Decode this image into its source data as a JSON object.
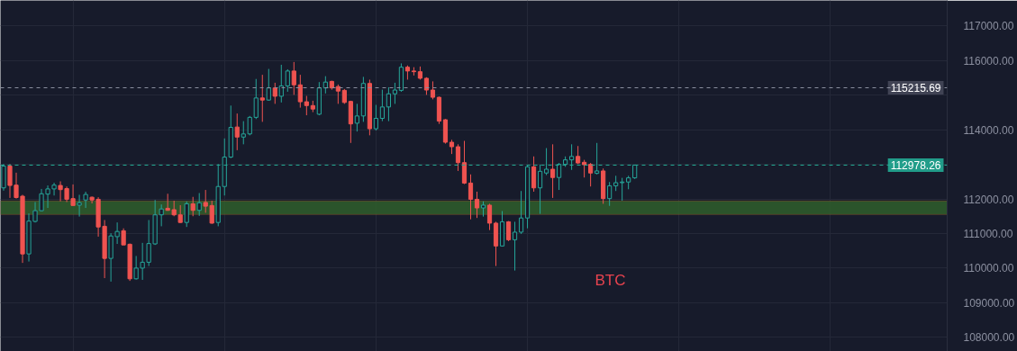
{
  "chart_data": {
    "type": "candlestick",
    "categories": [
      null,
      null,
      null,
      null,
      null,
      null,
      null,
      null,
      null,
      null,
      null,
      null,
      null,
      null,
      null,
      null,
      null,
      null,
      null,
      null,
      null,
      null,
      null,
      null,
      null,
      null,
      null,
      null,
      null,
      null,
      null,
      null,
      null,
      null,
      null,
      null,
      null,
      null,
      null,
      null,
      null,
      null,
      null,
      null,
      null,
      null,
      null,
      null,
      null,
      null,
      null,
      null,
      null,
      null,
      null,
      null,
      null,
      null,
      null,
      null,
      null,
      null,
      null,
      null,
      null,
      null,
      null,
      null,
      null,
      null,
      null,
      null,
      null,
      null,
      null,
      null,
      null,
      null,
      null,
      null,
      null,
      null,
      null,
      null,
      null,
      null,
      null,
      null,
      null,
      null,
      null,
      null,
      null,
      null,
      null,
      null,
      null,
      null,
      null,
      null,
      null,
      null,
      null,
      null,
      null,
      null,
      null,
      null,
      null,
      null,
      null,
      null,
      null,
      null,
      null,
      null,
      null,
      null,
      null,
      null,
      null,
      null,
      null,
      null,
      null,
      null,
      null,
      null,
      null,
      null,
      null,
      null,
      null,
      null,
      null,
      null,
      null,
      null,
      null,
      null,
      null,
      null,
      null,
      null,
      null,
      null,
      null,
      null,
      null,
      null
    ],
    "ohlc": [
      [
        112320,
        113010,
        112240,
        112950
      ],
      [
        112950,
        113010,
        112030,
        112390
      ],
      [
        112400,
        112760,
        112010,
        112040
      ],
      [
        112080,
        112120,
        110150,
        110410
      ],
      [
        110410,
        111580,
        110190,
        111360
      ],
      [
        111350,
        111910,
        111320,
        111660
      ],
      [
        111660,
        112290,
        111650,
        112150
      ],
      [
        112140,
        112390,
        111740,
        112290
      ],
      [
        112290,
        112470,
        112100,
        112400
      ],
      [
        112390,
        112510,
        111930,
        112270
      ],
      [
        112300,
        112360,
        111910,
        111990
      ],
      [
        112010,
        112420,
        111810,
        111810
      ],
      [
        111820,
        112120,
        111490,
        111890
      ],
      [
        111970,
        112210,
        111740,
        112130
      ],
      [
        112050,
        112070,
        111870,
        111970
      ],
      [
        111990,
        112050,
        110910,
        111190
      ],
      [
        111210,
        111390,
        109710,
        110280
      ],
      [
        110280,
        111010,
        109610,
        110930
      ],
      [
        110910,
        111320,
        110700,
        111060
      ],
      [
        111080,
        111150,
        110670,
        110670
      ],
      [
        110690,
        110710,
        109630,
        109690
      ],
      [
        109690,
        110350,
        109670,
        110000
      ],
      [
        110000,
        110730,
        109660,
        110170
      ],
      [
        110170,
        111390,
        110060,
        110710
      ],
      [
        110700,
        111970,
        110670,
        111540
      ],
      [
        111540,
        111840,
        111210,
        111710
      ],
      [
        111730,
        112150,
        111660,
        111670
      ],
      [
        111690,
        111950,
        111500,
        111540
      ],
      [
        111540,
        111820,
        111310,
        111320
      ],
      [
        111320,
        111930,
        111190,
        111860
      ],
      [
        111860,
        112060,
        111500,
        111670
      ],
      [
        111670,
        112170,
        111510,
        111890
      ],
      [
        111900,
        112260,
        111600,
        111790
      ],
      [
        111810,
        111950,
        111280,
        111300
      ],
      [
        111320,
        113010,
        111210,
        112360
      ],
      [
        112360,
        113750,
        112100,
        113210
      ],
      [
        113210,
        114700,
        113180,
        114070
      ],
      [
        114080,
        114470,
        113410,
        113790
      ],
      [
        113790,
        114250,
        113580,
        113880
      ],
      [
        113880,
        114400,
        113840,
        114360
      ],
      [
        114360,
        115470,
        114310,
        114920
      ],
      [
        114920,
        115590,
        114230,
        114860
      ],
      [
        114860,
        115760,
        114840,
        115210
      ],
      [
        115210,
        115360,
        114750,
        114970
      ],
      [
        114970,
        115880,
        114790,
        115270
      ],
      [
        115270,
        115750,
        115100,
        115700
      ],
      [
        115700,
        115960,
        115010,
        115300
      ],
      [
        115300,
        115590,
        114640,
        114810
      ],
      [
        114810,
        114980,
        114420,
        114700
      ],
      [
        114700,
        114840,
        114510,
        114600
      ],
      [
        114450,
        115380,
        114420,
        115210
      ],
      [
        115210,
        115550,
        115050,
        115380
      ],
      [
        115400,
        115420,
        115160,
        115210
      ],
      [
        115250,
        115310,
        114750,
        115120
      ],
      [
        115140,
        115180,
        114750,
        114790
      ],
      [
        114820,
        114840,
        113620,
        114170
      ],
      [
        114190,
        114750,
        113950,
        114400
      ],
      [
        114400,
        115530,
        114230,
        115340
      ],
      [
        115340,
        115450,
        113840,
        114030
      ],
      [
        114030,
        114720,
        113980,
        114330
      ],
      [
        114330,
        115160,
        114250,
        114660
      ],
      [
        114660,
        115230,
        114250,
        115040
      ],
      [
        115040,
        115360,
        114750,
        115150
      ],
      [
        115140,
        115920,
        115100,
        115810
      ],
      [
        115810,
        115860,
        115450,
        115700
      ],
      [
        115700,
        115810,
        115570,
        115680
      ],
      [
        115680,
        115830,
        115450,
        115490
      ],
      [
        115490,
        115520,
        115010,
        115150
      ],
      [
        115150,
        115400,
        114880,
        114940
      ],
      [
        114940,
        114960,
        114170,
        114250
      ],
      [
        114290,
        114310,
        113600,
        113640
      ],
      [
        113640,
        113710,
        113300,
        113510
      ],
      [
        113510,
        113580,
        112810,
        113050
      ],
      [
        113050,
        113680,
        112430,
        112460
      ],
      [
        112460,
        112710,
        111410,
        111990
      ],
      [
        111990,
        112210,
        111450,
        111740
      ],
      [
        111740,
        111930,
        111490,
        111820
      ],
      [
        111820,
        111860,
        111100,
        111300
      ],
      [
        111300,
        111340,
        110060,
        110640
      ],
      [
        110640,
        111650,
        110630,
        111340
      ],
      [
        111340,
        111360,
        110780,
        110820
      ],
      [
        110820,
        111340,
        109930,
        111040
      ],
      [
        111040,
        112230,
        110990,
        111450
      ],
      [
        111450,
        112990,
        111150,
        112930
      ],
      [
        112930,
        113230,
        112210,
        112320
      ],
      [
        112320,
        112990,
        111570,
        112800
      ],
      [
        112750,
        113470,
        112690,
        112860
      ],
      [
        112860,
        113580,
        112030,
        112620
      ],
      [
        112620,
        113040,
        112260,
        113000
      ],
      [
        113000,
        113230,
        112930,
        113130
      ],
      [
        113130,
        113580,
        112840,
        113230
      ],
      [
        113230,
        113530,
        113010,
        113040
      ],
      [
        113060,
        113130,
        112620,
        112990
      ],
      [
        113000,
        113040,
        112360,
        112750
      ],
      [
        112740,
        113620,
        112710,
        112810
      ],
      [
        112810,
        112880,
        111860,
        112010
      ],
      [
        112010,
        112490,
        111800,
        112380
      ],
      [
        112380,
        112670,
        112230,
        112470
      ],
      [
        112470,
        112610,
        111950,
        112490
      ],
      [
        112490,
        112670,
        112280,
        112610
      ],
      [
        112610,
        112990,
        112580,
        112978.26
      ],
      null,
      null,
      null,
      null,
      null,
      null,
      null,
      null,
      null,
      null,
      null,
      null,
      null,
      null,
      null,
      null,
      null,
      null,
      null,
      null,
      null,
      null,
      null,
      null,
      null,
      null,
      null,
      null,
      null,
      null,
      null,
      null,
      null,
      null,
      null,
      null,
      null,
      null,
      null,
      null,
      null,
      null,
      null,
      null,
      null,
      null,
      null,
      null,
      null
    ],
    "colors": [
      "#26a69a",
      "#ef5350",
      "#ef5350",
      "#ef5350",
      "#26a69a",
      "#26a69a",
      "#26a69a",
      "#26a69a",
      "#26a69a",
      "#ef5350",
      "#ef5350",
      "#ef5350",
      "#26a69a",
      "#26a69a",
      "#ef5350",
      "#ef5350",
      "#ef5350",
      "#26a69a",
      "#26a69a",
      "#ef5350",
      "#ef5350",
      "#26a69a",
      "#26a69a",
      "#26a69a",
      "#26a69a",
      "#26a69a",
      "#ef5350",
      "#ef5350",
      "#ef5350",
      "#26a69a",
      "#ef5350",
      "#26a69a",
      "#ef5350",
      "#ef5350",
      "#26a69a",
      "#26a69a",
      "#26a69a",
      "#ef5350",
      "#26a69a",
      "#26a69a",
      "#26a69a",
      "#ef5350",
      "#26a69a",
      "#ef5350",
      "#26a69a",
      "#26a69a",
      "#ef5350",
      "#ef5350",
      "#ef5350",
      "#ef5350",
      "#26a69a",
      "#26a69a",
      "#ef5350",
      "#ef5350",
      "#ef5350",
      "#ef5350",
      "#26a69a",
      "#26a69a",
      "#ef5350",
      "#26a69a",
      "#26a69a",
      "#26a69a",
      "#26a69a",
      "#26a69a",
      "#ef5350",
      "#ef5350",
      "#ef5350",
      "#ef5350",
      "#ef5350",
      "#ef5350",
      "#ef5350",
      "#ef5350",
      "#ef5350",
      "#ef5350",
      "#ef5350",
      "#ef5350",
      "#26a69a",
      "#ef5350",
      "#ef5350",
      "#26a69a",
      "#ef5350",
      "#26a69a",
      "#26a69a",
      "#26a69a",
      "#ef5350",
      "#26a69a",
      "#26a69a",
      "#ef5350",
      "#26a69a",
      "#26a69a",
      "#26a69a",
      "#ef5350",
      "#ef5350",
      "#ef5350",
      "#26a69a",
      "#ef5350",
      "#26a69a",
      "#26a69a",
      "#26a69a",
      "#26a69a",
      "#26a69a",
      null,
      null,
      null,
      null,
      null,
      null,
      null,
      null,
      null,
      null,
      null,
      null,
      null,
      null,
      null,
      null,
      null,
      null,
      null,
      null,
      null,
      null,
      null,
      null,
      null,
      null,
      null,
      null,
      null,
      null,
      null,
      null,
      null,
      null,
      null,
      null,
      null,
      null,
      null,
      null,
      null,
      null,
      null,
      null,
      null,
      null,
      null,
      null,
      null
    ],
    "ylim": [
      107590,
      117740
    ],
    "yticks": [
      {
        "value": 108000,
        "label": "108000.00"
      },
      {
        "value": 109000,
        "label": "109000.00"
      },
      {
        "value": 110000,
        "label": "110000.00"
      },
      {
        "value": 111000,
        "label": "111000.00"
      },
      {
        "value": 112000,
        "label": "112000.00"
      },
      {
        "value": 113000,
        "label": null
      },
      {
        "value": 114000,
        "label": "114000.00"
      },
      {
        "value": 115000,
        "label": null
      },
      {
        "value": 116000,
        "label": "116000.00"
      },
      {
        "value": 117000,
        "label": "117000.00"
      }
    ],
    "tick_labels": "y",
    "grid": true,
    "ref_lines": [
      {
        "axis": "y",
        "value": 115215.69,
        "label": "115215.69",
        "color": "#8b90a0",
        "line_style": "dashed"
      },
      {
        "axis": "y",
        "value": 112978.26,
        "label": "112978.26",
        "color": "#22ab94",
        "line_style": "dashed"
      }
    ],
    "bands": [
      {
        "axis": "y",
        "from": 111550,
        "to": 111940,
        "color": "#2f5e2c"
      }
    ],
    "annotations": [
      "BTC"
    ]
  }
}
